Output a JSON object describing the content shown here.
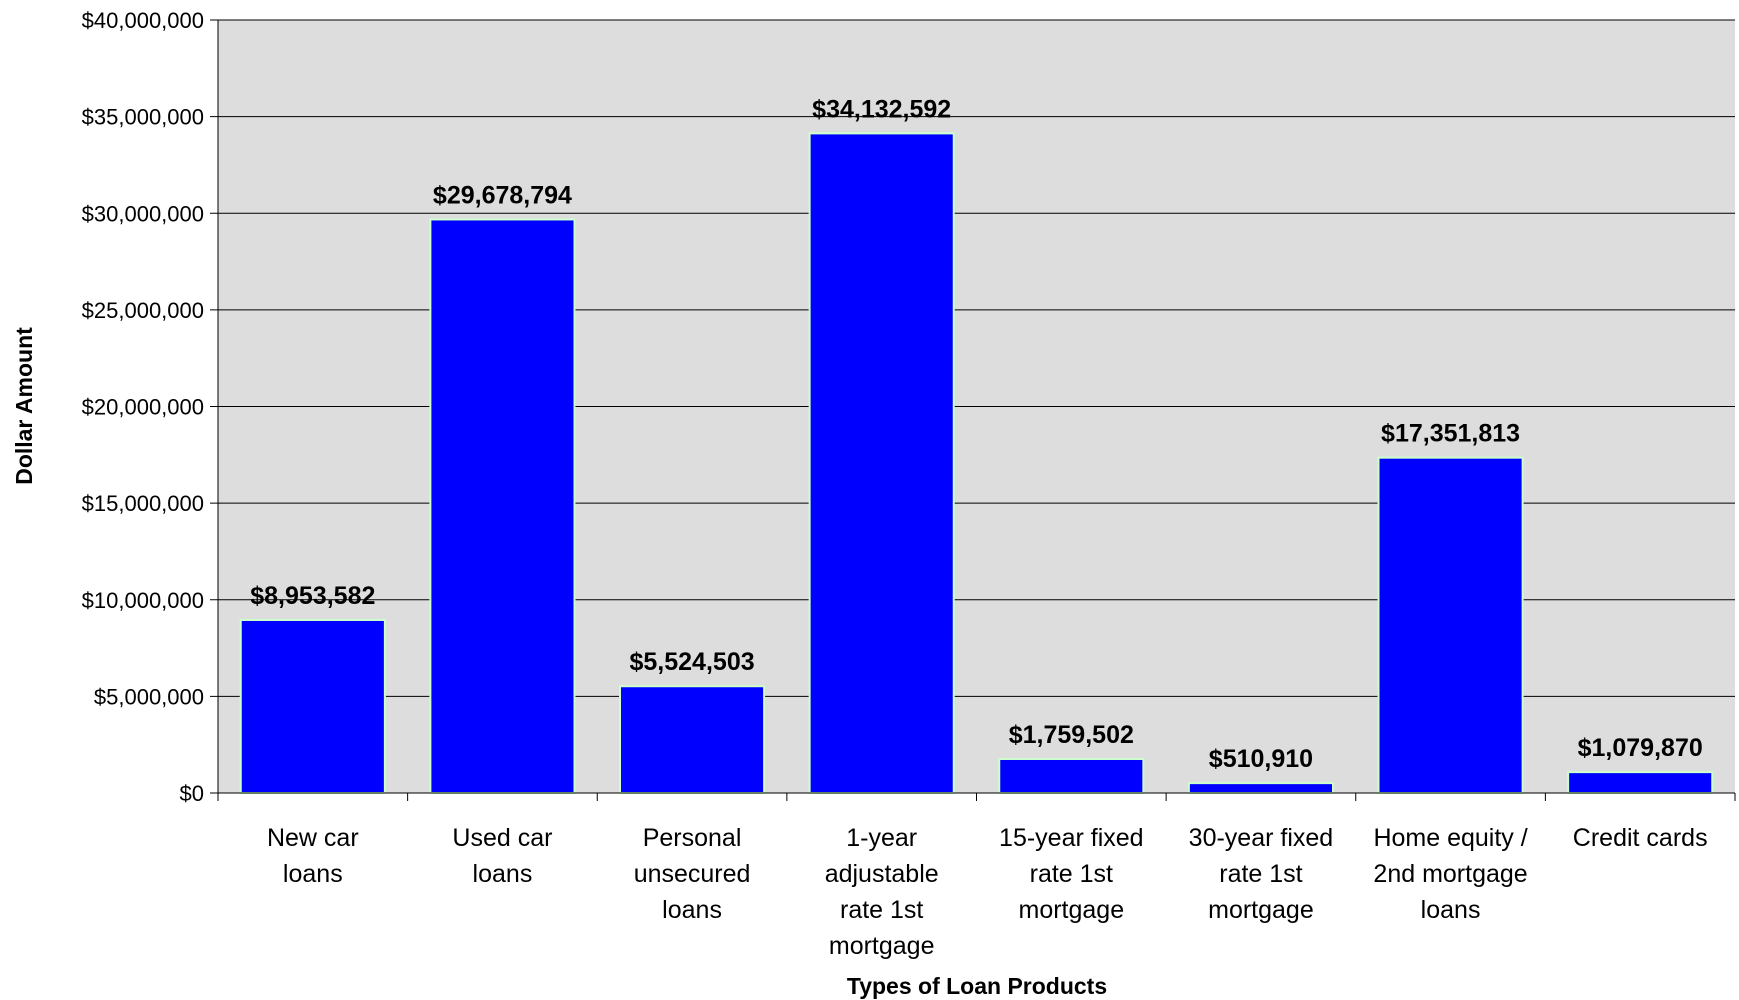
{
  "chart_data": {
    "type": "bar",
    "title": "",
    "xlabel": "Types of Loan Products",
    "ylabel": "Dollar Amount",
    "categories": [
      [
        "New car",
        "loans"
      ],
      [
        "Used car",
        "loans"
      ],
      [
        "Personal",
        "unsecured",
        "loans"
      ],
      [
        "1-year",
        "adjustable",
        "rate 1st",
        "mortgage"
      ],
      [
        "15-year fixed",
        "rate 1st",
        "mortgage"
      ],
      [
        "30-year fixed",
        "rate 1st",
        "mortgage"
      ],
      [
        "Home equity /",
        "2nd mortgage",
        "loans"
      ],
      [
        "Credit cards"
      ]
    ],
    "values": [
      8953582,
      29678794,
      5524503,
      34132592,
      1759502,
      510910,
      17351813,
      1079870
    ],
    "data_labels": [
      "$8,953,582",
      "$29,678,794",
      "$5,524,503",
      "$34,132,592",
      "$1,759,502",
      "$510,910",
      "$17,351,813",
      "$1,079,870"
    ],
    "ylim": [
      0,
      40000000
    ],
    "yticks": [
      0,
      5000000,
      10000000,
      15000000,
      20000000,
      25000000,
      30000000,
      35000000,
      40000000
    ],
    "ytick_labels": [
      "$0",
      "$5,000,000",
      "$10,000,000",
      "$15,000,000",
      "$20,000,000",
      "$25,000,000",
      "$30,000,000",
      "$35,000,000",
      "$40,000,000"
    ],
    "grid": true,
    "legend": "none",
    "colors": {
      "bar": "#0000ff",
      "bar_edge": "#ccffcc",
      "plot_bg": "#dddddd",
      "grid": "#000000"
    }
  }
}
